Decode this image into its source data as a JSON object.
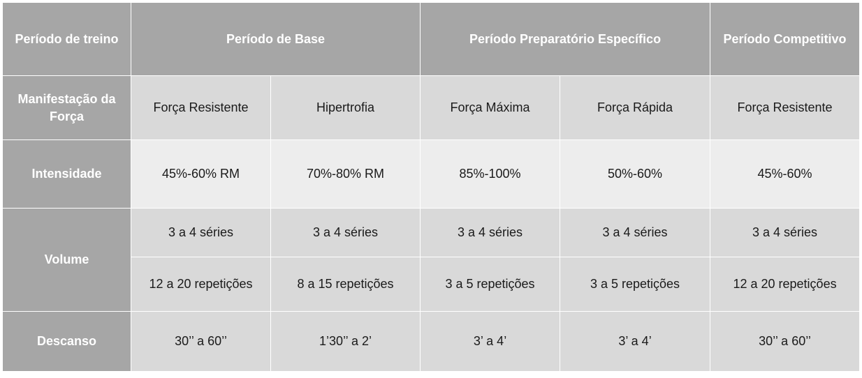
{
  "table": {
    "header": {
      "label": "Período de treino",
      "base": "Período de Base",
      "preparatorio": "Período Preparatório Específico",
      "competitivo": "Período Competitivo"
    },
    "manifestacao": {
      "label": "Manifestação da Força",
      "cells": [
        "Força Resistente",
        "Hipertrofia",
        "Força Máxima",
        "Força Rápida",
        "Força Resistente"
      ]
    },
    "intensidade": {
      "label": "Intensidade",
      "cells": [
        "45%-60% RM",
        "70%-80% RM",
        "85%-100%",
        "50%-60%",
        "45%-60%"
      ]
    },
    "volume": {
      "label": "Volume",
      "series": [
        "3 a 4 séries",
        "3 a 4 séries",
        "3 a 4 séries",
        "3 a 4 séries",
        "3 a 4 séries"
      ],
      "repeticoes": [
        "12 a 20 repetições",
        "8 a 15 repetições",
        "3 a 5 repetições",
        "3 a 5 repetições",
        "12 a 20 repetições"
      ]
    },
    "descanso": {
      "label": "Descanso",
      "cells": [
        "30’’ a 60’’",
        "1’30’’ a 2’",
        "3’ a 4’",
        "3’ a 4’",
        "30’’ a 60’’"
      ]
    },
    "colors": {
      "header": "#a6a6a6",
      "cell_grey": "#d9d9d9",
      "cell_light": "#ededed"
    }
  }
}
